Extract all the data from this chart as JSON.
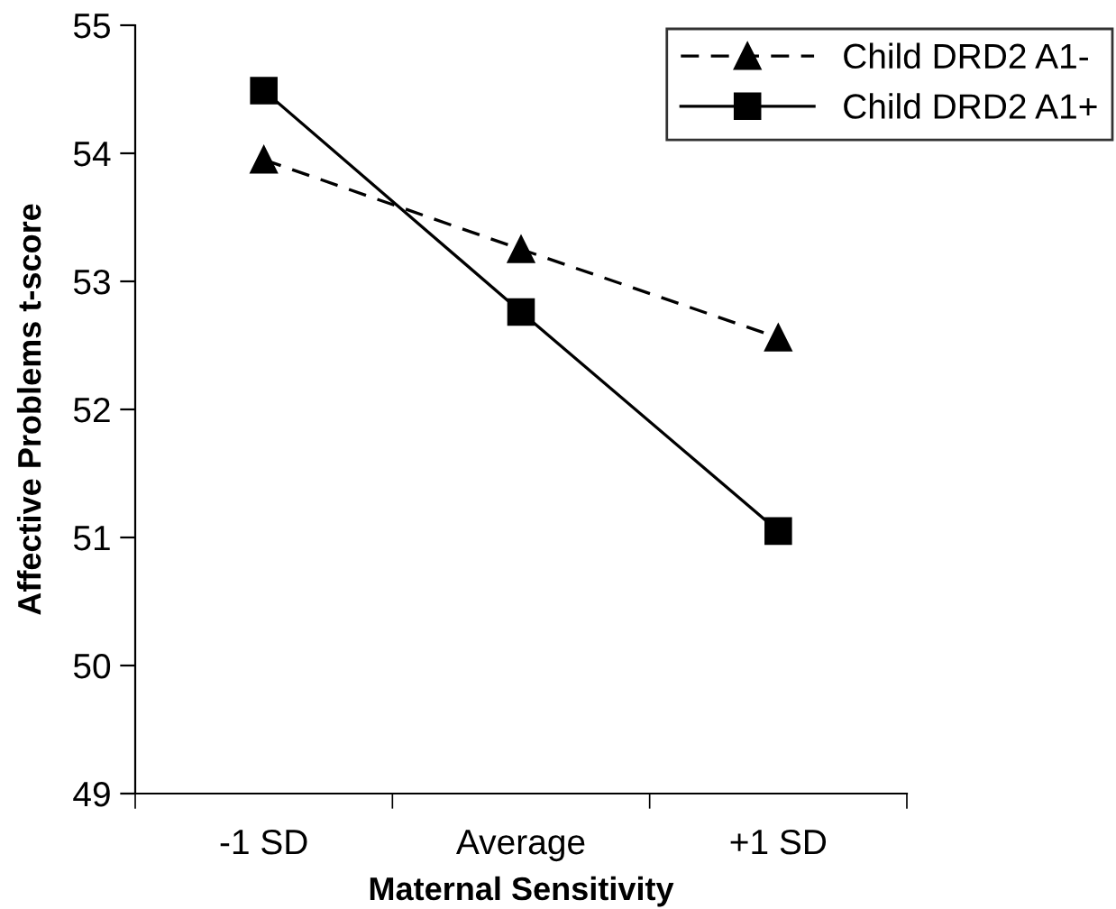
{
  "chart_data": {
    "type": "line",
    "xlabel": "Maternal Sensitivity",
    "ylabel": "Affective Problems t-score",
    "categories": [
      "-1 SD",
      "Average",
      "+1 SD"
    ],
    "series": [
      {
        "name": "Child DRD2 A1-",
        "color": "#000000",
        "values": [
          53.95,
          53.25,
          52.56
        ],
        "marker": "triangle",
        "line_style": "dashed"
      },
      {
        "name": "Child DRD2 A1+",
        "color": "#000000",
        "values": [
          54.49,
          52.76,
          51.05
        ],
        "marker": "square",
        "line_style": "solid"
      }
    ],
    "ylim": [
      49,
      55
    ],
    "yticks": [
      49,
      50,
      51,
      52,
      53,
      54,
      55
    ],
    "grid": false,
    "legend": "top right"
  }
}
